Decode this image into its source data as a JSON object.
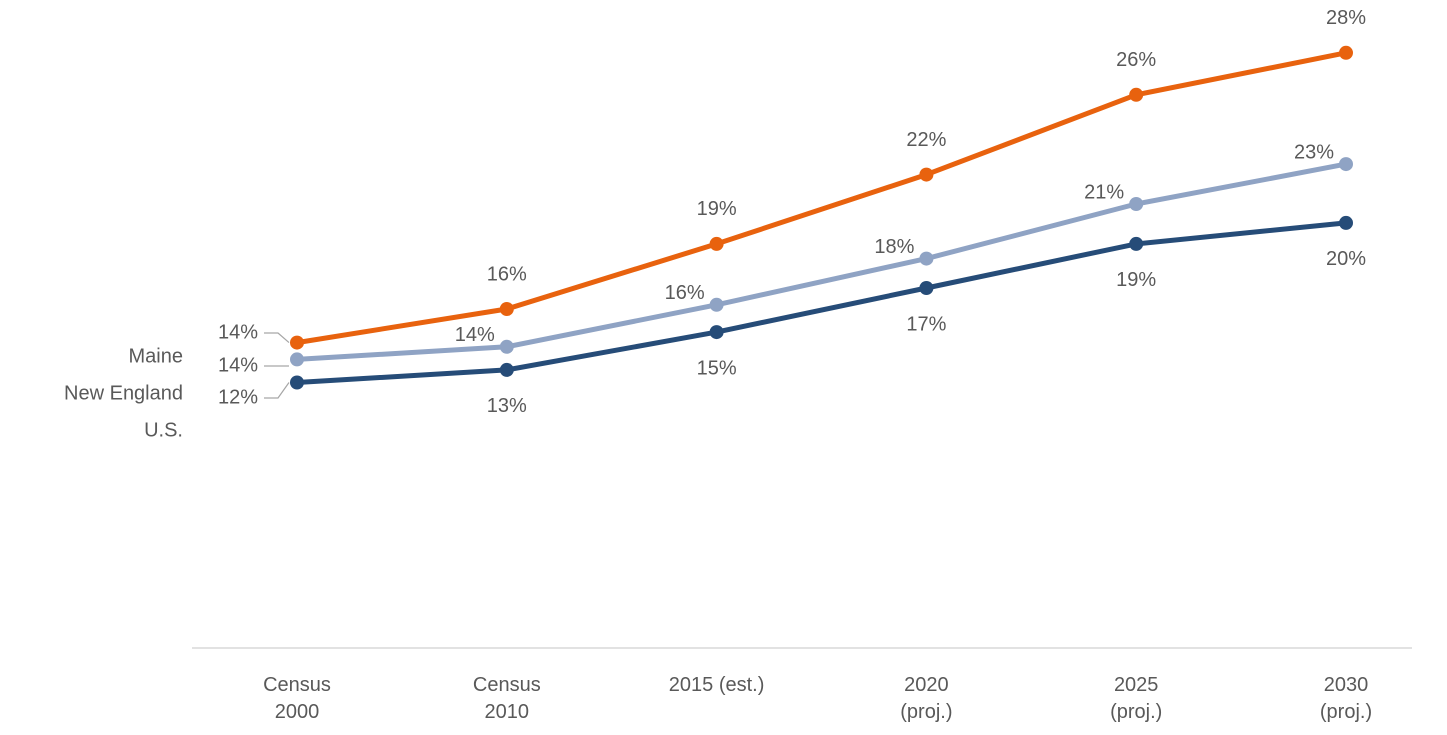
{
  "chart_data": {
    "type": "line",
    "categories": [
      "Census 2000",
      "Census 2010",
      "2015 (est.)",
      "2020 (proj.)",
      "2025 (proj.)",
      "2030 (proj.)"
    ],
    "ylim": [
      0,
      30
    ],
    "series": [
      {
        "name": "Maine",
        "color": "#e8620e",
        "values": [
          14.4,
          16.0,
          19.1,
          22.4,
          26.2,
          28.2
        ],
        "value_labels": [
          "14%",
          "16%",
          "19%",
          "22%",
          "26%",
          "28%"
        ]
      },
      {
        "name": "New England",
        "color": "#8fa3c4",
        "values": [
          13.6,
          14.2,
          16.2,
          18.4,
          21.0,
          22.9
        ],
        "value_labels": [
          "14%",
          "14%",
          "16%",
          "18%",
          "21%",
          "23%"
        ]
      },
      {
        "name": "U.S.",
        "color": "#264c78",
        "values": [
          12.5,
          13.1,
          14.9,
          17.0,
          19.1,
          20.1
        ],
        "value_labels": [
          "12%",
          "13%",
          "15%",
          "17%",
          "19%",
          "20%"
        ]
      }
    ]
  }
}
